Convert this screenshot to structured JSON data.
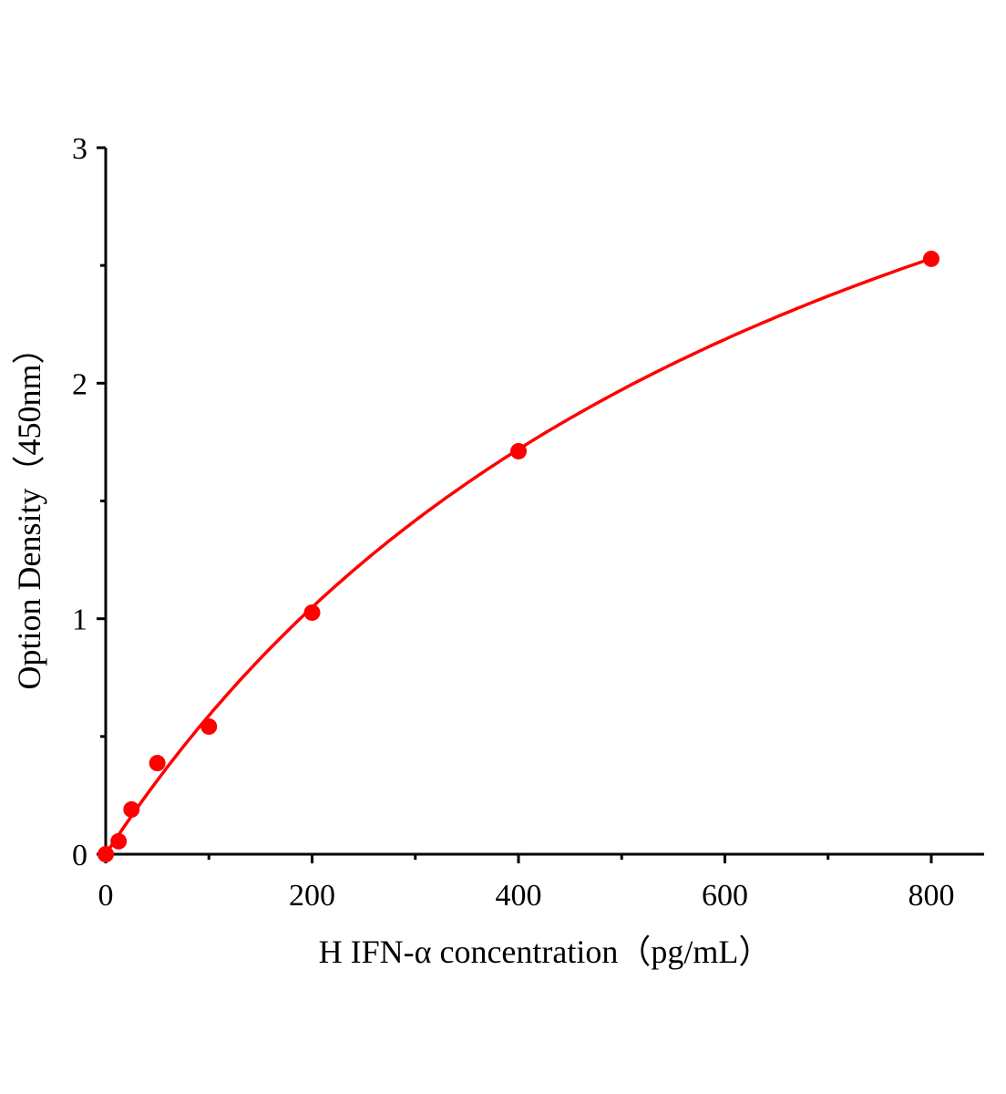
{
  "chart_data": {
    "type": "scatter",
    "title": "",
    "xlabel": "H IFN-α  concentration（pg/mL）",
    "ylabel": "Option Density（450nm）",
    "xlim": [
      0,
      850
    ],
    "ylim": [
      0,
      3
    ],
    "x_ticks": [
      "0",
      "200",
      "400",
      "600",
      "800"
    ],
    "y_ticks": [
      "0",
      "1",
      "2",
      "3"
    ],
    "grid": false,
    "legend": "none",
    "series": [
      {
        "x": [
          0,
          12.5,
          25,
          50,
          100,
          200,
          400,
          800
        ],
        "y": [
          0.0,
          0.055,
          0.19,
          0.387,
          0.542,
          1.026,
          1.711,
          2.528
        ],
        "color": "#ff0000",
        "fit_curve": true
      }
    ]
  }
}
